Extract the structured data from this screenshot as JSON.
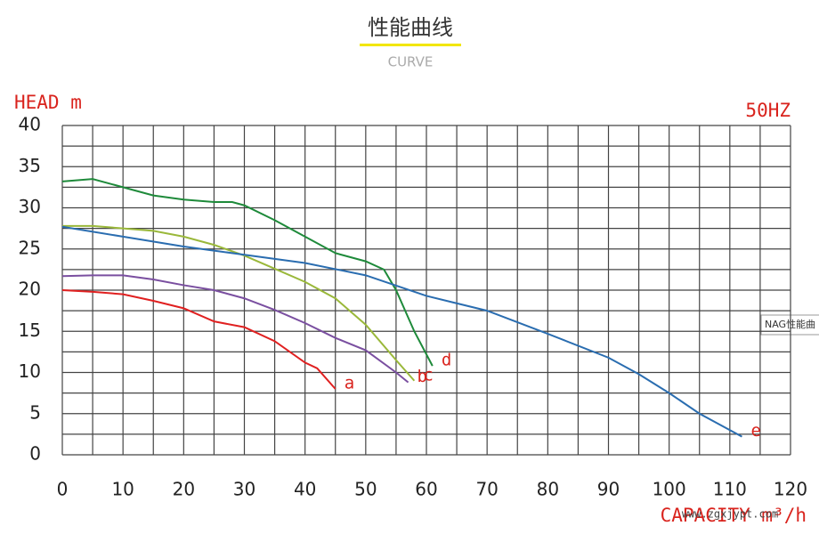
{
  "chart_data": {
    "type": "line",
    "title": "性能曲线",
    "subtitle": "CURVE",
    "y_label": "HEAD m",
    "x_label": "CAPACITY m³/h",
    "frequency": "50HZ",
    "watermark": "www.zgxjypt.com",
    "tooltip": "NAG性能曲",
    "xlim": [
      0,
      120
    ],
    "xticks": [
      0,
      10,
      20,
      30,
      40,
      50,
      60,
      70,
      80,
      90,
      100,
      110,
      120
    ],
    "ylim": [
      0,
      40
    ],
    "yticks": [
      0,
      5,
      10,
      15,
      20,
      25,
      30,
      35,
      40
    ],
    "grid": true,
    "series": [
      {
        "name": "a",
        "color": "#e02020",
        "x": [
          0,
          5,
          10,
          15,
          20,
          25,
          30,
          35,
          40,
          42,
          45
        ],
        "values": [
          20,
          19.8,
          19.5,
          18.7,
          17.8,
          16.2,
          15.5,
          13.8,
          11.2,
          10.5,
          8
        ]
      },
      {
        "name": "b",
        "color": "#7a4fa0",
        "x": [
          0,
          5,
          10,
          15,
          20,
          25,
          30,
          35,
          40,
          45,
          50,
          55,
          57
        ],
        "values": [
          21.7,
          21.8,
          21.8,
          21.3,
          20.6,
          20,
          19,
          17.6,
          16,
          14.2,
          12.7,
          10,
          8.8
        ]
      },
      {
        "name": "c",
        "color": "#9ab83a",
        "x": [
          0,
          5,
          10,
          15,
          20,
          25,
          30,
          35,
          40,
          45,
          50,
          55,
          58
        ],
        "values": [
          27.8,
          27.8,
          27.5,
          27.2,
          26.5,
          25.5,
          24.2,
          22.6,
          21,
          19,
          15.8,
          11.5,
          9
        ]
      },
      {
        "name": "d",
        "color": "#1e8a3a",
        "x": [
          0,
          5,
          10,
          15,
          20,
          25,
          28,
          30,
          35,
          40,
          45,
          50,
          53,
          55,
          58,
          61
        ],
        "values": [
          33.2,
          33.5,
          32.5,
          31.5,
          31,
          30.7,
          30.7,
          30.3,
          28.5,
          26.5,
          24.5,
          23.5,
          22.5,
          20,
          15,
          10.8
        ]
      },
      {
        "name": "e",
        "color": "#2a6db0",
        "x": [
          0,
          10,
          20,
          30,
          40,
          50,
          60,
          70,
          80,
          90,
          95,
          100,
          105,
          112
        ],
        "values": [
          27.7,
          26.5,
          25.3,
          24.3,
          23.3,
          21.8,
          19.3,
          17.5,
          14.7,
          11.8,
          9.8,
          7.5,
          5,
          2.2
        ]
      }
    ]
  }
}
